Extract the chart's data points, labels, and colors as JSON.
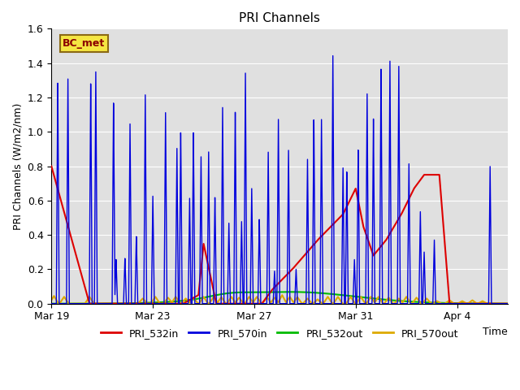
{
  "title": "PRI Channels",
  "ylabel": "PRI Channels (W/m2/nm)",
  "xlabel": "Time",
  "legend_label": "BC_met",
  "ylim": [
    0,
    1.6
  ],
  "yticks": [
    0.0,
    0.2,
    0.4,
    0.6,
    0.8,
    1.0,
    1.2,
    1.4,
    1.6
  ],
  "xtick_labels": [
    "Mar 19",
    "Mar 23",
    "Mar 27",
    "Mar 31",
    "Apr 4"
  ],
  "xtick_positions": [
    0,
    4,
    8,
    12,
    16
  ],
  "xlim": [
    0,
    18
  ],
  "bg_color": "#e0e0e0",
  "pri532in_color": "#dd0000",
  "pri570in_color": "#0000dd",
  "pri532out_color": "#00bb00",
  "pri570out_color": "#ddaa00",
  "figsize": [
    6.4,
    4.8
  ],
  "dpi": 100
}
